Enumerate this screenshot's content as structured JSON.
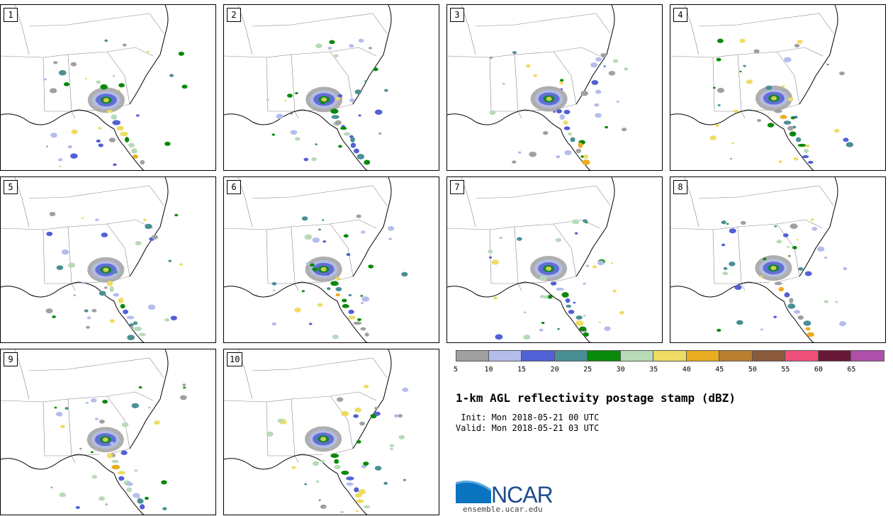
{
  "panels": [
    {
      "label": "1"
    },
    {
      "label": "2"
    },
    {
      "label": "3"
    },
    {
      "label": "4"
    },
    {
      "label": "5"
    },
    {
      "label": "6"
    },
    {
      "label": "7"
    },
    {
      "label": "8"
    },
    {
      "label": "9"
    },
    {
      "label": "10"
    }
  ],
  "colorbar": {
    "colors": [
      "#a0a0a0",
      "#b4bdea",
      "#5260d6",
      "#4a8f94",
      "#0a8a0a",
      "#b8dab8",
      "#eedc64",
      "#eaac20",
      "#b98030",
      "#8a5a3a",
      "#ee507a",
      "#6a1838",
      "#ae50aa"
    ],
    "ticks": [
      "5",
      "10",
      "15",
      "20",
      "25",
      "30",
      "35",
      "40",
      "45",
      "50",
      "55",
      "60",
      "65"
    ]
  },
  "title": "1-km AGL reflectivity postage stamp (dBZ)",
  "init_text": " Init: Mon 2018-05-21 00 UTC",
  "valid_text": "Valid: Mon 2018-05-21 03 UTC",
  "logo": {
    "name": "NCAR",
    "url": "ensemble.ucar.edu"
  }
}
